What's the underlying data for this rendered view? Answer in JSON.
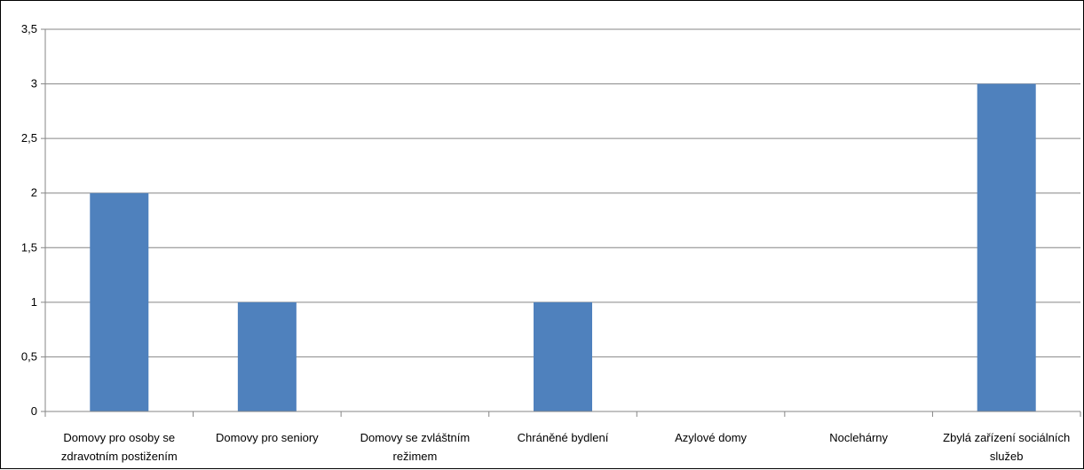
{
  "chart_data": {
    "type": "bar",
    "title": "",
    "xlabel": "",
    "ylabel": "",
    "categories": [
      [
        "Domovy pro osoby se",
        "zdravotním postižením"
      ],
      [
        "Domovy pro seniory"
      ],
      [
        "Domovy se zvláštním",
        "režimem"
      ],
      [
        "Chráněné bydlení"
      ],
      [
        "Azylové domy"
      ],
      [
        "Noclehárny"
      ],
      [
        "Zbylá zařízení sociálních",
        "služeb"
      ]
    ],
    "values": [
      2,
      1,
      0,
      1,
      0,
      0,
      3
    ],
    "ylim": [
      0,
      3.5
    ],
    "yticks": [
      0,
      0.5,
      1,
      1.5,
      2,
      2.5,
      3,
      3.5
    ],
    "ytick_labels": [
      "0",
      "0,5",
      "1",
      "1,5",
      "2",
      "2,5",
      "3",
      "3,5"
    ],
    "grid": true,
    "legend": "none",
    "colors": {
      "bar": "#4F81BD",
      "grid": "#868686",
      "axis": "#868686"
    }
  }
}
